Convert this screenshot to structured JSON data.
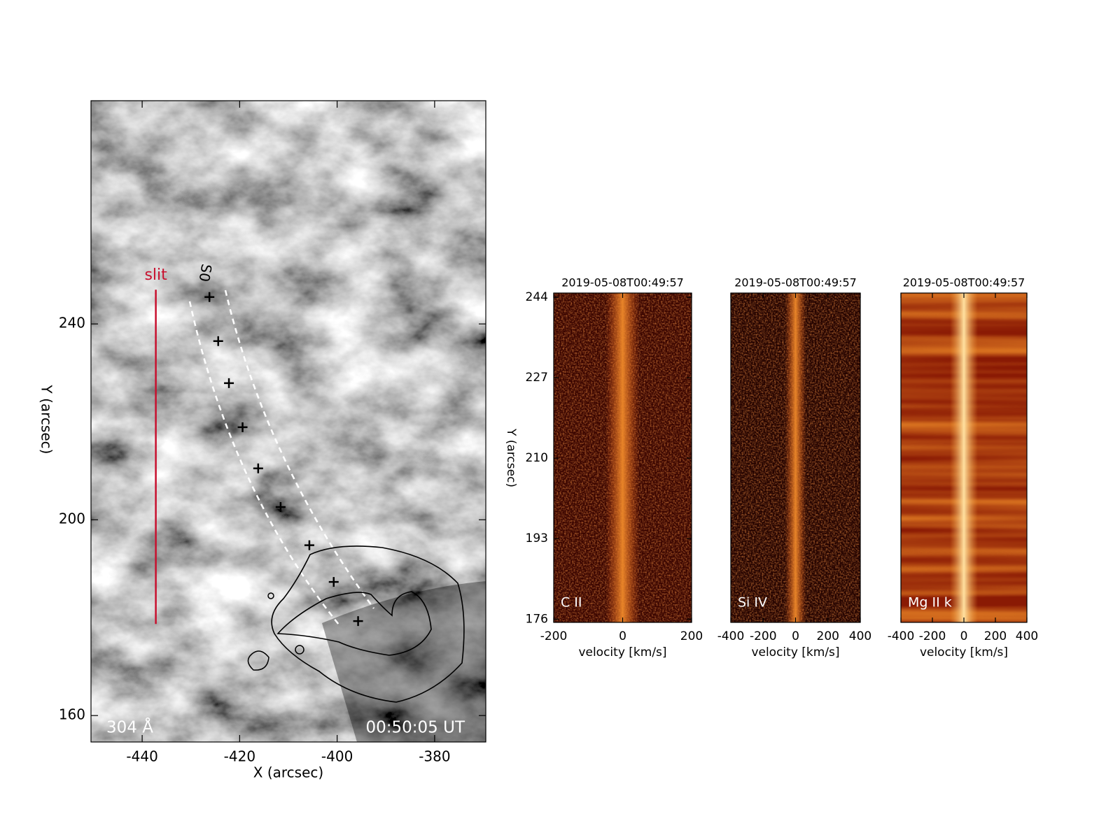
{
  "chart_data": [
    {
      "type": "scatter",
      "xlabel": "X (arcsec)",
      "ylabel": "Y (arcsec)",
      "xlim": [
        -450.5,
        -369.5
      ],
      "ylim": [
        154.6,
        285.6
      ],
      "xticks": [
        -440,
        -420,
        -400,
        -380
      ],
      "yticks": [
        160,
        200,
        240
      ],
      "x": [
        -426.2,
        -424.4,
        -422.2,
        -419.4,
        -416.2,
        -411.6,
        -405.7,
        -400.7,
        -395.7
      ],
      "y": [
        245.5,
        236.5,
        227.9,
        218.9,
        210.5,
        202.6,
        194.8,
        187.3,
        179.3
      ],
      "color": "#000000",
      "slit": {
        "label": "slit",
        "x": -437.2,
        "y": [
          178.7,
          247
        ],
        "color": "#c8102e"
      },
      "annotations": {
        "wavelength": "304 Å",
        "time": "00:50:05 UT",
        "track": "S0"
      }
    },
    {
      "type": "image",
      "title": "2019-05-08T00:49:57",
      "label": "C II",
      "xlabel": "velocity [km/s]",
      "ylabel": "Y (arcsec)",
      "xlim": [
        -200,
        200
      ],
      "xticks": [
        -200,
        0,
        200
      ],
      "ylim": [
        175.3,
        244.9
      ],
      "yticks": [
        176,
        193,
        210,
        227,
        244
      ]
    },
    {
      "type": "image",
      "title": "2019-05-08T00:49:57",
      "label": "Si IV",
      "xlabel": "velocity [km/s]",
      "xlim": [
        -400,
        400
      ],
      "xticks": [
        -400,
        -200,
        0,
        200,
        400
      ],
      "ylim": [
        175.3,
        244.9
      ]
    },
    {
      "type": "image",
      "title": "2019-05-08T00:49:57",
      "label": "Mg II k",
      "xlabel": "velocity [km/s]",
      "xlim": [
        -400,
        400
      ],
      "xticks": [
        -400,
        -200,
        0,
        200,
        400
      ],
      "ylim": [
        175.3,
        244.9
      ]
    }
  ]
}
